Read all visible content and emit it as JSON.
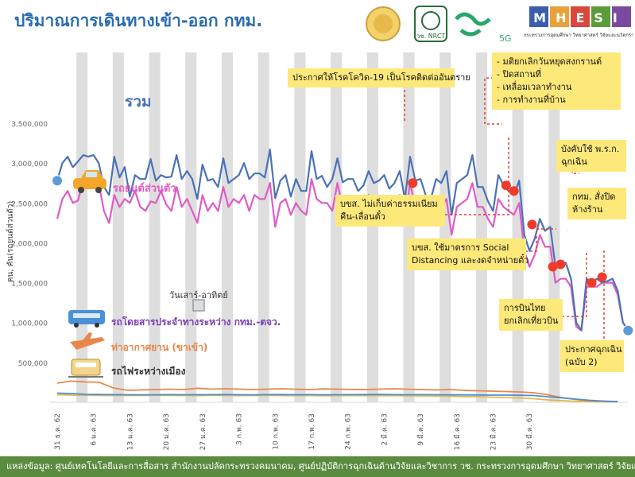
{
  "title": "ปริมาณการเดินทางเข้า-ออก กทม.",
  "logos": {
    "seal_alt": "ตราสัญลักษณ์",
    "nrct": "วช. NRCT",
    "fiveg": "5G",
    "mhesi": "MHESI",
    "mhesi_sub": "กระทรวงการอุดมศึกษา วิทยาศาสตร์ วิจัยและนวัตกรรม"
  },
  "colors": {
    "total": "#4a72b8",
    "car": "#e05bc6",
    "bus": "#4b8fd8",
    "air": "#e8874a",
    "train": "#e0b84a",
    "marker": "#ee3b2b",
    "endpoint": "#5b9bd5",
    "band": "#dedede",
    "callout": "#fde87a",
    "footer": "#5b8b3f"
  },
  "labels": {
    "total": "รวม",
    "car": "รถยนต์ส่วนตัว",
    "weekend": "วันเสาร์-อาทิตย์",
    "bus": "รถโดยสารประจำทางระหว่าง กทม.-ตจว.",
    "air": "ท่าอากาศยาน (ขาเข้า)",
    "train": "รถไฟระหว่างเมือง"
  },
  "icons": {
    "car": "car-icon",
    "bus": "bus-icon",
    "air": "airplane-icon",
    "train": "train-icon"
  },
  "callouts": {
    "covid": "ประกาศให้โรคโควิด-19 เป็นโรคติดต่ออันตราย",
    "measures": [
      "- มติยกเลิกวันหยุดสงกรานต์",
      "- ปิดสถานที่",
      "- เหลื่อมเวลาทำงาน",
      "- การทำงานที่บ้าน"
    ],
    "decree": [
      "บังคับใช้ พ.ร.ก.",
      "ฉุกเฉิน"
    ],
    "toll": [
      "บขส. ไม่เก็บค่าธรรมเนียม",
      "คืน-เลื่อนตั๋ว"
    ],
    "bkk_close": [
      "กทม. สั่งปิด",
      "ห้างร้าน"
    ],
    "social": [
      "บขส. ใช้มาตรการ Social",
      "Distancing และงดจำหน่ายตั๋ว"
    ],
    "thai": [
      "การบินไทย",
      "ยกเลิกเที่ยวบิน"
    ],
    "emergency": [
      "ประกาศฉุกเฉิน",
      "(ฉบับ 2)"
    ]
  },
  "footer": "แหล่งข้อมูล: ศูนย์เทคโนโลยีและการสื่อสาร สำนักงานปลัดกระทรวงคมนาคม, ศูนย์ปฏิบัติการฉุกเฉินด้านวิจัยและวิชาการ วช. กระทรวงการอุดมศึกษา วิทยาศาสตร์ วิจัยและนวัตกรรม",
  "chart_data": {
    "type": "line",
    "ylabel": "คน, คัน(รถยนต์ส่วนตัว)",
    "ylim": [
      0,
      3500000
    ],
    "yticks": [
      {
        "v": 500000,
        "t": "500,000"
      },
      {
        "v": 1000000,
        "t": "1,000,000"
      },
      {
        "v": 1500000,
        "t": "1,500,000"
      },
      {
        "v": 2000000,
        "t": "2,000,000"
      },
      {
        "v": 2500000,
        "t": "2,500,000"
      },
      {
        "v": 3000000,
        "t": "3,000,000"
      },
      {
        "v": 3500000,
        "t": "3,500,000"
      }
    ],
    "x_start": "2019-12-31",
    "x_end": "2020-04-04",
    "xticks": [
      "31 ธ.ค. 62",
      "6 ม.ค. 63",
      "13 ม.ค. 63",
      "20 ม.ค. 63",
      "27 ม.ค. 63",
      "3 ก.พ. 63",
      "10 ก.พ. 63",
      "17 ก.พ. 63",
      "24 ก.พ. 63",
      "2 มี.ค. 63",
      "9 มี.ค. 63",
      "16 มี.ค. 63",
      "23 มี.ค. 63",
      "30 มี.ค. 63"
    ],
    "series": [
      {
        "name": "รวม",
        "key": "total",
        "values": [
          2780000,
          3000000,
          3080000,
          2950000,
          3020000,
          3100000,
          3080000,
          3100000,
          3000000,
          2700000,
          2600000,
          3080000,
          2820000,
          2950000,
          2580000,
          2850000,
          2800000,
          2800000,
          3050000,
          2780000,
          2850000,
          2820000,
          2830000,
          3100000,
          2800000,
          2900000,
          2800000,
          2550000,
          2980000,
          2780000,
          2800000,
          2700000,
          3060000,
          2750000,
          2800000,
          2850000,
          3000000,
          2800000,
          2870000,
          2870000,
          2820000,
          3170000,
          2560000,
          2780000,
          2850000,
          2580000,
          2800000,
          2650000,
          2650000,
          3150000,
          2800000,
          2840000,
          2700000,
          2800000,
          3060000,
          2760000,
          2800000,
          2800000,
          2650000,
          2720000,
          2900000,
          2750000,
          2780000,
          2850000,
          2680000,
          2750000,
          2900000,
          2550000,
          3080000,
          2780000,
          2800000,
          2600000,
          2550000,
          2800000,
          2750000,
          2900000,
          2350000,
          2750000,
          2800000,
          2850000,
          3100000,
          2700000,
          2700000,
          2520000,
          2400000,
          2850000,
          2720000,
          2650000,
          2600000,
          2780000,
          2100000,
          1900000,
          2050000,
          2300000,
          2150000,
          2200000,
          1700000,
          1700000,
          1750000,
          1550000,
          1000000,
          900000,
          1550000,
          1500000,
          1550000,
          1500000,
          1520000,
          1550000,
          1400000,
          1000000,
          900000
        ],
        "start": 0,
        "step": 1
      },
      {
        "name": "รถยนต์ส่วนตัว",
        "key": "car",
        "values": [
          2300000,
          2550000,
          2650000,
          2500000,
          2530000,
          2780000,
          2750000,
          2800000,
          2750000,
          2400000,
          2250000,
          2600000,
          2450000,
          2550000,
          2500000,
          2650000,
          2450000,
          2400000,
          2520000,
          2500000,
          2650000,
          2480000,
          2400000,
          2700000,
          2450000,
          2550000,
          2400000,
          2250000,
          2600000,
          2400000,
          2500000,
          2400000,
          2700000,
          2450000,
          2550000,
          2500000,
          2600000,
          2400000,
          2600000,
          2550000,
          2550000,
          2750000,
          2200000,
          2500000,
          2550000,
          2350000,
          2500000,
          2400000,
          2350000,
          2800000,
          2550000,
          2500000,
          2500000,
          2400000,
          2750000,
          2450000,
          2550000,
          2500000,
          2450000,
          2500000,
          2600000,
          2450000,
          2450000,
          2500000,
          2400000,
          2500000,
          2600000,
          2300000,
          2750000,
          2450000,
          2500000,
          2400000,
          2350000,
          2550000,
          2450000,
          2550000,
          2100000,
          2450000,
          2500000,
          2550000,
          2750000,
          2450000,
          2450000,
          2300000,
          2200000,
          2550000,
          2450000,
          2400000,
          2350000,
          2500000,
          1900000,
          1700000,
          1850000,
          2100000,
          1950000,
          1950000,
          1500000,
          1550000,
          1550000,
          1450000,
          950000,
          900000,
          1450000,
          1450000,
          1450000,
          1500000,
          1500000,
          1500000,
          1350000,
          1000000,
          900000
        ],
        "start": 0,
        "step": 1
      },
      {
        "name": "รถโดยสารประจำทางระหว่าง กทม.-ตจว.",
        "key": "bus",
        "values": [
          115000,
          110000,
          100000,
          98000,
          96000,
          95000,
          94000,
          95000,
          96000,
          95000,
          95000,
          96000,
          97000,
          95000,
          94000,
          96000,
          97000,
          95000,
          96000,
          94000,
          95000,
          96000,
          97000,
          98000,
          96000,
          95000,
          96000,
          95000,
          94000,
          93000,
          92000,
          90000,
          90000,
          88000,
          85000,
          70000,
          55000,
          40000,
          25000,
          15000,
          8000
        ],
        "start": 0,
        "step": 2.7
      },
      {
        "name": "ท่าอากาศยาน (ขาเข้า)",
        "key": "air",
        "values": [
          240000,
          265000,
          255000,
          250000,
          180000,
          150000,
          155000,
          160000,
          165000,
          160000,
          175000,
          165000,
          170000,
          165000,
          160000,
          165000,
          170000,
          165000,
          160000,
          168000,
          165000,
          162000,
          160000,
          165000,
          170000,
          165000,
          160000,
          155000,
          160000,
          150000,
          145000,
          140000,
          135000,
          130000,
          120000,
          95000,
          60000,
          35000,
          20000,
          12000,
          8000
        ],
        "start": 0,
        "step": 2.7
      },
      {
        "name": "รถไฟระหว่างเมือง",
        "key": "train",
        "values": [
          95000,
          90000,
          88000,
          86000,
          85000,
          85000,
          86000,
          88000,
          86000,
          85000,
          84000,
          86000,
          85000,
          84000,
          85000,
          86000,
          85000,
          84000,
          85000,
          83000,
          84000,
          85000,
          84000,
          83000,
          84000,
          82000,
          80000,
          78000,
          76000,
          72000,
          70000,
          65000,
          60000,
          55000,
          45000,
          30000,
          20000,
          12000,
          8000,
          6000,
          5000
        ],
        "start": 0,
        "step": 2.7
      }
    ],
    "markers": [
      [
        0,
        2780000
      ],
      [
        68.5,
        2750000
      ],
      [
        86.5,
        2720000
      ],
      [
        88,
        2650000
      ],
      [
        91.5,
        2230000
      ],
      [
        95.5,
        1700000
      ],
      [
        97,
        1730000
      ],
      [
        103,
        1500000
      ],
      [
        105,
        1570000
      ]
    ],
    "endpoints": [
      [
        0,
        2780000
      ],
      [
        110,
        900000
      ]
    ],
    "grid": false,
    "legend": "inline labels"
  }
}
